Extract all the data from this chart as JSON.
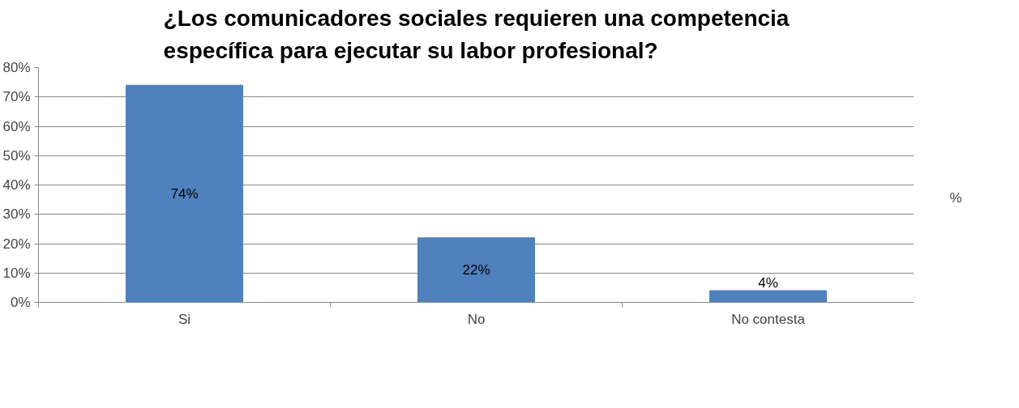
{
  "chart_data": {
    "type": "bar",
    "title": "¿Los comunicadores sociales requieren una competencia específica para ejecutar su labor profesional?",
    "categories": [
      "Si",
      "No",
      "No contesta"
    ],
    "series": [
      {
        "name": "%",
        "color": "#4f81bd",
        "values": [
          74,
          22,
          4
        ],
        "value_labels": [
          "74%",
          "22%",
          "4%"
        ]
      }
    ],
    "ylim": [
      0,
      80
    ],
    "yticks": [
      {
        "value": 0,
        "label": "0%"
      },
      {
        "value": 10,
        "label": "10%"
      },
      {
        "value": 20,
        "label": "20%"
      },
      {
        "value": 30,
        "label": "30%"
      },
      {
        "value": 40,
        "label": "40%"
      },
      {
        "value": 50,
        "label": "50%"
      },
      {
        "value": 60,
        "label": "60%"
      },
      {
        "value": 70,
        "label": "70%"
      },
      {
        "value": 80,
        "label": "80%"
      }
    ],
    "grid": "y",
    "legend": "right"
  }
}
